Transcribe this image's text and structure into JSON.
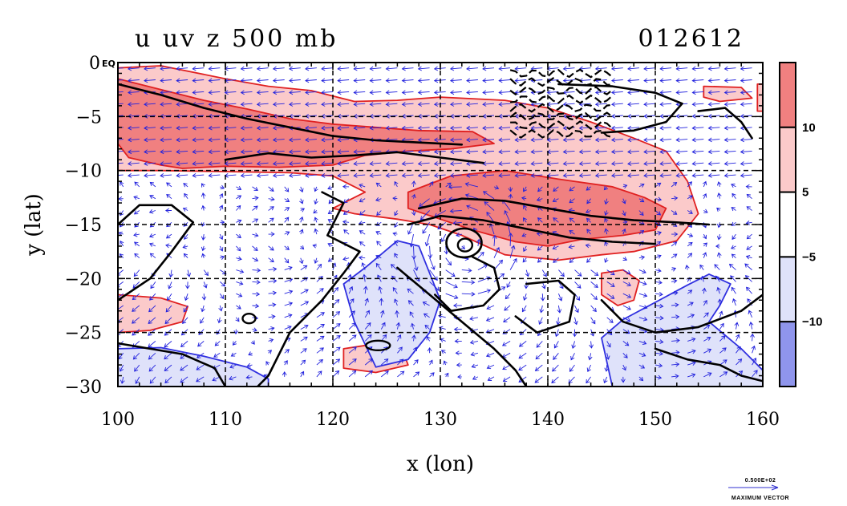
{
  "chart_data": {
    "type": "heatmap",
    "title": "u uv z 500 mb",
    "date_label": "012612",
    "xlabel": "x (lon)",
    "ylabel": "y (lat)",
    "xlim": [
      100,
      160
    ],
    "ylim": [
      -30,
      0
    ],
    "x_ticks": [
      100,
      110,
      120,
      130,
      140,
      150,
      160
    ],
    "y_ticks": [
      0,
      -5,
      -10,
      -15,
      -20,
      -25,
      -30
    ],
    "x_tick_labels": [
      "100",
      "110",
      "120",
      "130",
      "140",
      "150",
      "160"
    ],
    "y_tick_labels": [
      "0",
      "−5",
      "−10",
      "−15",
      "−20",
      "−25",
      "−30"
    ],
    "y_top_suffix": "EQ",
    "grid": true,
    "colorbar": {
      "levels": [
        {
          "label": "",
          "color": "#f08080"
        },
        {
          "label": "10",
          "color": "#fbcaca"
        },
        {
          "label": "5",
          "color": "#ffffff"
        },
        {
          "label": "−5",
          "color": "#dfe2fa"
        },
        {
          "label": "−10",
          "color": "#8f95ec"
        }
      ]
    },
    "shading_colors": {
      "strong_positive": "#f08080",
      "positive": "#fbcaca",
      "negative": "#dfe2fa",
      "strong_negative": "#8f95ec"
    },
    "vector_key": {
      "value": "0.500E+02",
      "label": "MAXIMUM VECTOR"
    }
  }
}
